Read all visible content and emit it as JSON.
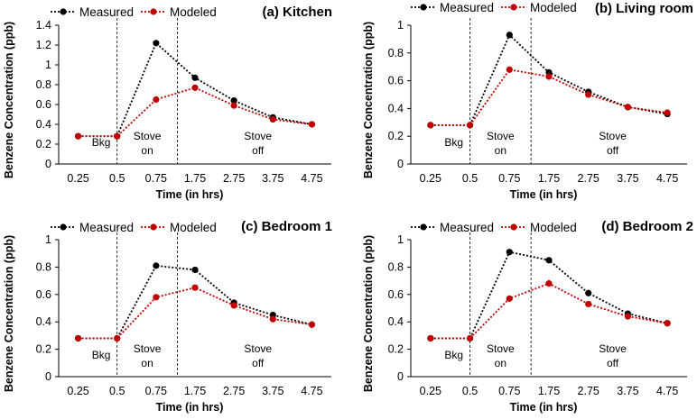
{
  "colors": {
    "measured": "#000000",
    "modeled": "#c00000",
    "axis": "#000000",
    "divider": "#000000"
  },
  "chart_data": [
    {
      "type": "line",
      "title": "(a) Kitchen",
      "xlabel": "Time (in hrs)",
      "ylabel": "Benzene Concentration (ppb)",
      "categories": [
        "0.25",
        "0.5",
        "0.75",
        "1.75",
        "2.75",
        "3.75",
        "4.75"
      ],
      "ylim": [
        0,
        1.4
      ],
      "yticks": [
        "0",
        "0.2",
        "0.4",
        "0.6",
        "0.8",
        "1",
        "1.2",
        "1.4"
      ],
      "grid": false,
      "legend": "top-left",
      "series": [
        {
          "name": "Measured",
          "values": [
            0.28,
            0.28,
            1.22,
            0.87,
            0.64,
            0.47,
            0.4
          ]
        },
        {
          "name": "Modeled",
          "values": [
            0.28,
            0.28,
            0.65,
            0.77,
            0.59,
            0.45,
            0.4
          ]
        }
      ],
      "annotations": [
        {
          "line1": "Bkg",
          "line2": ""
        },
        {
          "line1": "Stove",
          "line2": "on"
        },
        {
          "line1": "Stove",
          "line2": "off"
        }
      ]
    },
    {
      "type": "line",
      "title": "(b) Living room",
      "xlabel": "Time (in hrs)",
      "ylabel": "Benzene Concentration (ppb)",
      "categories": [
        "0.25",
        "0.5",
        "0.75",
        "1.75",
        "2.75",
        "3.75",
        "4.75"
      ],
      "ylim": [
        0,
        1
      ],
      "yticks": [
        "0",
        "0.2",
        "0.4",
        "0.6",
        "0.8",
        "1"
      ],
      "grid": false,
      "legend": "top-left",
      "series": [
        {
          "name": "Measured",
          "values": [
            0.28,
            0.28,
            0.93,
            0.66,
            0.52,
            0.41,
            0.36
          ]
        },
        {
          "name": "Modeled",
          "values": [
            0.28,
            0.28,
            0.68,
            0.63,
            0.5,
            0.41,
            0.37
          ]
        }
      ],
      "annotations": [
        {
          "line1": "Bkg",
          "line2": ""
        },
        {
          "line1": "Stove",
          "line2": "on"
        },
        {
          "line1": "Stove",
          "line2": "off"
        }
      ]
    },
    {
      "type": "line",
      "title": "(c) Bedroom 1",
      "xlabel": "Time (in hrs)",
      "ylabel": "Benzene Concentration (ppb)",
      "categories": [
        "0.25",
        "0.5",
        "0.75",
        "1.75",
        "2.75",
        "3.75",
        "4.75"
      ],
      "ylim": [
        0,
        1
      ],
      "yticks": [
        "0",
        "0.2",
        "0.4",
        "0.6",
        "0.8",
        "1"
      ],
      "grid": false,
      "legend": "top-left",
      "series": [
        {
          "name": "Measured",
          "values": [
            0.28,
            0.28,
            0.81,
            0.78,
            0.54,
            0.45,
            0.38
          ]
        },
        {
          "name": "Modeled",
          "values": [
            0.28,
            0.28,
            0.58,
            0.65,
            0.52,
            0.42,
            0.38
          ]
        }
      ],
      "annotations": [
        {
          "line1": "Bkg",
          "line2": ""
        },
        {
          "line1": "Stove",
          "line2": "on"
        },
        {
          "line1": "Stove",
          "line2": "off"
        }
      ]
    },
    {
      "type": "line",
      "title": "(d) Bedroom 2",
      "xlabel": "Time (in hrs)",
      "ylabel": "Benzene Concentration (ppb)",
      "categories": [
        "0.25",
        "0.5",
        "0.75",
        "1.75",
        "2.75",
        "3.75",
        "4.75"
      ],
      "ylim": [
        0,
        1
      ],
      "yticks": [
        "0",
        "0.2",
        "0.4",
        "0.6",
        "0.8",
        "1"
      ],
      "grid": false,
      "legend": "top-left",
      "series": [
        {
          "name": "Measured",
          "values": [
            0.28,
            0.28,
            0.91,
            0.85,
            0.61,
            0.46,
            0.39
          ]
        },
        {
          "name": "Modeled",
          "values": [
            0.28,
            0.28,
            0.57,
            0.68,
            0.53,
            0.44,
            0.39
          ]
        }
      ],
      "annotations": [
        {
          "line1": "Bkg",
          "line2": ""
        },
        {
          "line1": "Stove",
          "line2": "on"
        },
        {
          "line1": "Stove",
          "line2": "off"
        }
      ]
    }
  ]
}
